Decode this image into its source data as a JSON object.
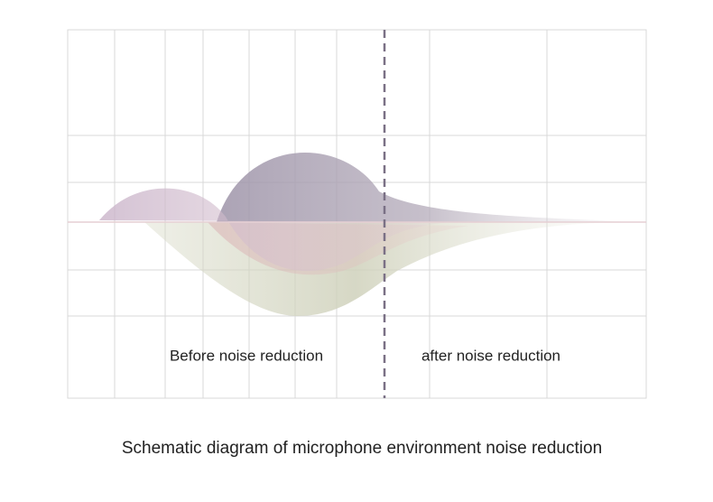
{
  "labels": {
    "before": "Before noise reduction",
    "after": "after noise reduction"
  },
  "caption": "Schematic diagram of microphone environment noise reduction"
}
